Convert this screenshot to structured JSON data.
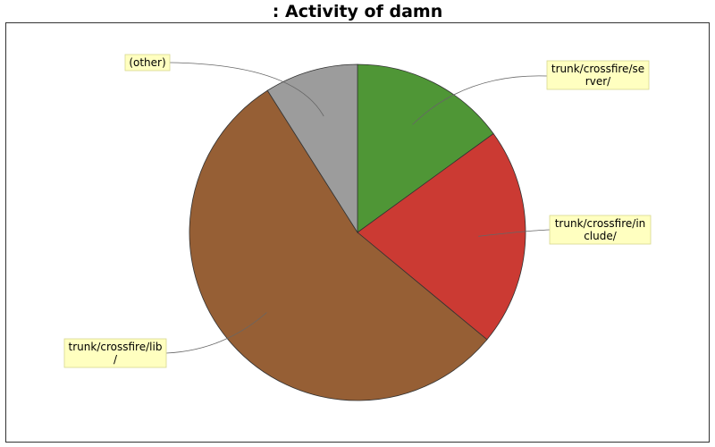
{
  "chart_data": {
    "type": "pie",
    "title": ": Activity of damn",
    "slices": [
      {
        "label": "trunk/crossfire/server/",
        "label_lines": [
          "trunk/crossfire/se",
          "rver/"
        ],
        "value": 15.0,
        "color": "#4f9636"
      },
      {
        "label": "trunk/crossfire/include/",
        "label_lines": [
          "trunk/crossfire/in",
          "clude/"
        ],
        "value": 21.0,
        "color": "#cb3a33"
      },
      {
        "label": "trunk/crossfire/lib/",
        "label_lines": [
          "trunk/crossfire/lib",
          "/"
        ],
        "value": 55.0,
        "color": "#965f35"
      },
      {
        "label": "(other)",
        "label_lines": [
          "(other)"
        ],
        "value": 9.0,
        "color": "#9c9c9c"
      }
    ],
    "start_angle_deg": 90,
    "direction": "clockwise",
    "legend": "none"
  }
}
